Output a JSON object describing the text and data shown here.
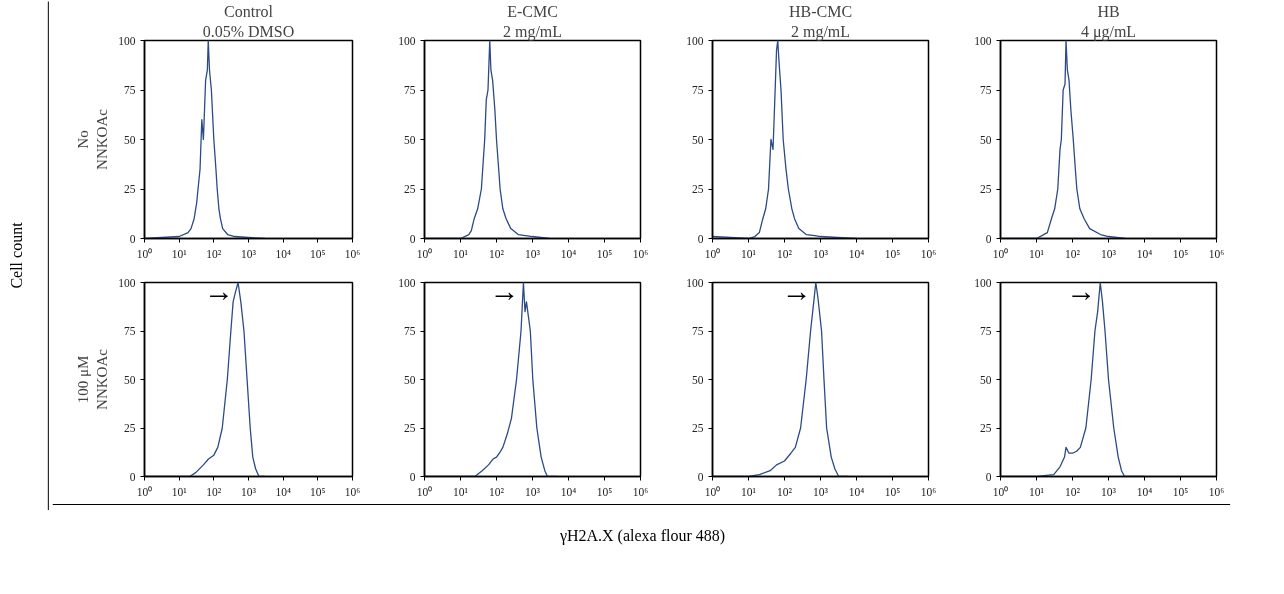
{
  "chart_data": [
    {
      "type": "line",
      "title": "Control",
      "subtitle": "0.05% DMSO",
      "ylabel": "No NNKOAc",
      "xlim": [
        1,
        1000000
      ],
      "ylim": [
        0,
        100
      ],
      "log": "x",
      "grid": false,
      "marker": "none",
      "line_style": "solid",
      "xticks": [
        {
          "value": 1,
          "label": "10⁰"
        },
        {
          "value": 10,
          "label": "10¹"
        },
        {
          "value": 100,
          "label": "10²"
        },
        {
          "value": 1000,
          "label": "10³"
        },
        {
          "value": 10000,
          "label": "10⁴"
        },
        {
          "value": 100000,
          "label": "10⁵"
        },
        {
          "value": 1000000,
          "label": "10⁶"
        }
      ],
      "yticks": [
        0,
        25,
        50,
        75,
        100
      ],
      "series": [
        {
          "color": "#2b4a86",
          "x": [
            1,
            10,
            18,
            22,
            27,
            32,
            35,
            40,
            45,
            50,
            58,
            65,
            69,
            75,
            85,
            100,
            115,
            125,
            140,
            155,
            180,
            250,
            400,
            1000,
            3000
          ],
          "values": [
            0,
            1,
            3,
            5,
            10,
            18,
            25,
            35,
            60,
            50,
            80,
            85,
            100,
            85,
            75,
            50,
            35,
            25,
            15,
            10,
            5,
            2,
            1,
            0.5,
            0
          ]
        }
      ]
    },
    {
      "type": "line",
      "title": "E-CMC",
      "subtitle": "2 mg/mL",
      "xlim": [
        1,
        1000000
      ],
      "ylim": [
        0,
        100
      ],
      "log": "x",
      "grid": false,
      "marker": "none",
      "line_style": "solid",
      "xticks": [
        {
          "value": 1,
          "label": "10⁰"
        },
        {
          "value": 10,
          "label": "10¹"
        },
        {
          "value": 100,
          "label": "10²"
        },
        {
          "value": 1000,
          "label": "10³"
        },
        {
          "value": 10000,
          "label": "10⁴"
        },
        {
          "value": 100000,
          "label": "10⁵"
        },
        {
          "value": 1000000,
          "label": "10⁶"
        }
      ],
      "yticks": [
        0,
        25,
        50,
        75,
        100
      ],
      "series": [
        {
          "color": "#2b4a86",
          "x": [
            1,
            10,
            17,
            20,
            24,
            30,
            38,
            47,
            52,
            58,
            65,
            70,
            78,
            90,
            100,
            115,
            126,
            150,
            185,
            250,
            400,
            1000,
            3000
          ],
          "values": [
            0,
            0,
            2,
            4,
            10,
            15,
            25,
            50,
            70,
            75,
            100,
            85,
            80,
            65,
            50,
            35,
            25,
            15,
            10,
            5,
            2,
            1,
            0
          ]
        }
      ]
    },
    {
      "type": "line",
      "title": "HB-CMC",
      "subtitle": "2 mg/mL",
      "xlim": [
        1,
        1000000
      ],
      "ylim": [
        0,
        100
      ],
      "log": "x",
      "grid": false,
      "marker": "none",
      "line_style": "solid",
      "xticks": [
        {
          "value": 1,
          "label": "10⁰"
        },
        {
          "value": 10,
          "label": "10¹"
        },
        {
          "value": 100,
          "label": "10²"
        },
        {
          "value": 1000,
          "label": "10³"
        },
        {
          "value": 10000,
          "label": "10⁴"
        },
        {
          "value": 100000,
          "label": "10⁵"
        },
        {
          "value": 1000000,
          "label": "10⁶"
        }
      ],
      "yticks": [
        0,
        25,
        50,
        75,
        100
      ],
      "series": [
        {
          "color": "#2b4a86",
          "x": [
            1,
            10,
            15,
            20,
            25,
            30,
            36,
            42,
            48,
            55,
            60,
            65,
            70,
            80,
            92,
            110,
            128,
            160,
            190,
            250,
            400,
            700,
            1000,
            3000,
            10000
          ],
          "values": [
            1,
            0,
            1,
            3,
            10,
            15,
            25,
            50,
            45,
            75,
            95,
            100,
            90,
            75,
            50,
            35,
            25,
            15,
            10,
            5,
            2,
            1.5,
            1,
            0.5,
            0
          ]
        }
      ]
    },
    {
      "type": "line",
      "title": "HB",
      "subtitle": "4 μg/mL",
      "xlim": [
        1,
        1000000
      ],
      "ylim": [
        0,
        100
      ],
      "log": "x",
      "grid": false,
      "marker": "none",
      "line_style": "solid",
      "xticks": [
        {
          "value": 1,
          "label": "10⁰"
        },
        {
          "value": 10,
          "label": "10¹"
        },
        {
          "value": 100,
          "label": "10²"
        },
        {
          "value": 1000,
          "label": "10³"
        },
        {
          "value": 10000,
          "label": "10⁴"
        },
        {
          "value": 100000,
          "label": "10⁵"
        },
        {
          "value": 1000000,
          "label": "10⁶"
        }
      ],
      "yticks": [
        0,
        25,
        50,
        75,
        100
      ],
      "series": [
        {
          "color": "#2b4a86",
          "x": [
            1,
            10,
            20,
            26,
            32,
            39,
            45,
            49,
            55,
            62,
            66,
            72,
            80,
            90,
            105,
            120,
            132,
            160,
            210,
            300,
            600,
            1000,
            3000
          ],
          "values": [
            0,
            0,
            3,
            10,
            15,
            25,
            45,
            50,
            75,
            78,
            100,
            85,
            80,
            65,
            50,
            35,
            25,
            15,
            10,
            5,
            2,
            1,
            0
          ]
        }
      ]
    },
    {
      "type": "line",
      "ylabel": "100 μM NNKOAc",
      "xlim": [
        1,
        1000000
      ],
      "ylim": [
        0,
        100
      ],
      "log": "x",
      "grid": false,
      "marker": "none",
      "line_style": "solid",
      "xticks": [
        {
          "value": 1,
          "label": "10⁰"
        },
        {
          "value": 10,
          "label": "10¹"
        },
        {
          "value": 100,
          "label": "10²"
        },
        {
          "value": 1000,
          "label": "10³"
        },
        {
          "value": 10000,
          "label": "10⁴"
        },
        {
          "value": 100000,
          "label": "10⁵"
        },
        {
          "value": 1000000,
          "label": "10⁶"
        }
      ],
      "yticks": [
        0,
        25,
        50,
        75,
        100
      ],
      "annotations": [
        {
          "text": "→",
          "x": 500,
          "y": 100
        }
      ],
      "series": [
        {
          "color": "#2b4a86",
          "x": [
            1,
            20,
            30,
            50,
            70,
            100,
            130,
            175,
            245,
            310,
            360,
            420,
            500,
            600,
            740,
            910,
            1120,
            1330,
            1600,
            2000,
            3000
          ],
          "values": [
            0,
            0,
            2,
            6,
            9,
            11,
            15,
            25,
            50,
            75,
            90,
            95,
            100,
            90,
            75,
            50,
            25,
            10,
            4,
            0,
            0
          ]
        }
      ]
    },
    {
      "type": "line",
      "xlim": [
        1,
        1000000
      ],
      "ylim": [
        0,
        100
      ],
      "log": "x",
      "grid": false,
      "marker": "none",
      "line_style": "solid",
      "xticks": [
        {
          "value": 1,
          "label": "10⁰"
        },
        {
          "value": 10,
          "label": "10¹"
        },
        {
          "value": 100,
          "label": "10²"
        },
        {
          "value": 1000,
          "label": "10³"
        },
        {
          "value": 10000,
          "label": "10⁴"
        },
        {
          "value": 100000,
          "label": "10⁵"
        },
        {
          "value": 1000000,
          "label": "10⁶"
        }
      ],
      "yticks": [
        0,
        25,
        50,
        75,
        100
      ],
      "annotations": [
        {
          "text": "→",
          "x": 560,
          "y": 100
        }
      ],
      "series": [
        {
          "color": "#2b4a86",
          "x": [
            1,
            25,
            40,
            60,
            80,
            100,
            130,
            150,
            200,
            260,
            360,
            480,
            560,
            620,
            680,
            870,
            1020,
            1320,
            1740,
            2200,
            2600,
            5000
          ],
          "values": [
            0,
            0,
            3,
            6,
            9,
            10,
            13,
            15,
            22,
            30,
            50,
            75,
            100,
            85,
            90,
            75,
            50,
            25,
            10,
            3,
            0,
            0
          ]
        }
      ]
    },
    {
      "type": "line",
      "xlim": [
        1,
        1000000
      ],
      "ylim": [
        0,
        100
      ],
      "log": "x",
      "grid": false,
      "marker": "none",
      "line_style": "solid",
      "xticks": [
        {
          "value": 1,
          "label": "10⁰"
        },
        {
          "value": 10,
          "label": "10¹"
        },
        {
          "value": 100,
          "label": "10²"
        },
        {
          "value": 1000,
          "label": "10³"
        },
        {
          "value": 10000,
          "label": "10⁴"
        },
        {
          "value": 100000,
          "label": "10⁵"
        },
        {
          "value": 1000000,
          "label": "10⁶"
        }
      ],
      "yticks": [
        0,
        25,
        50,
        75,
        100
      ],
      "annotations": [
        {
          "text": "→",
          "x": 740,
          "y": 100
        }
      ],
      "series": [
        {
          "color": "#2b4a86",
          "x": [
            1,
            10,
            20,
            40,
            60,
            100,
            150,
            200,
            280,
            400,
            530,
            650,
            740,
            850,
            1070,
            1250,
            1480,
            1990,
            2500,
            3200,
            6000
          ],
          "values": [
            0,
            0,
            1,
            3,
            6,
            8,
            12,
            15,
            25,
            50,
            75,
            90,
            100,
            92,
            75,
            50,
            25,
            10,
            4,
            0,
            0
          ]
        }
      ]
    },
    {
      "type": "line",
      "xlim": [
        1,
        1000000
      ],
      "ylim": [
        0,
        100
      ],
      "log": "x",
      "grid": false,
      "marker": "none",
      "line_style": "solid",
      "xticks": [
        {
          "value": 1,
          "label": "10⁰"
        },
        {
          "value": 10,
          "label": "10¹"
        },
        {
          "value": 100,
          "label": "10²"
        },
        {
          "value": 1000,
          "label": "10³"
        },
        {
          "value": 10000,
          "label": "10⁴"
        },
        {
          "value": 100000,
          "label": "10⁵"
        },
        {
          "value": 1000000,
          "label": "10⁶"
        }
      ],
      "yticks": [
        0,
        25,
        50,
        75,
        100
      ],
      "annotations": [
        {
          "text": "→",
          "x": 590,
          "y": 100
        }
      ],
      "series": [
        {
          "color": "#2b4a86",
          "x": [
            1,
            10,
            30,
            45,
            60,
            66,
            80,
            100,
            130,
            165,
            235,
            330,
            420,
            500,
            590,
            680,
            800,
            1000,
            1400,
            1860,
            2300,
            2800,
            10000
          ],
          "values": [
            0,
            0,
            1,
            5,
            10,
            15,
            12,
            12,
            13,
            15,
            25,
            50,
            75,
            85,
            100,
            90,
            75,
            50,
            25,
            10,
            3,
            0,
            0
          ]
        }
      ]
    },
    {
      "type": "other",
      "xlabel": "γH2A.X (alexa flour 488)",
      "ylabel": "Cell count"
    }
  ]
}
